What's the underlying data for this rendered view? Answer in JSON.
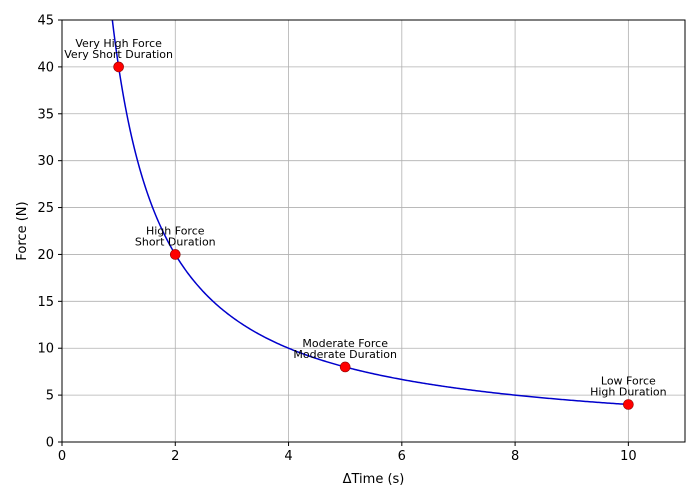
{
  "chart_data": {
    "type": "scatter",
    "xlabel": "ΔTime (s)",
    "ylabel": "Force (N)",
    "xlim": [
      0,
      11
    ],
    "ylim": [
      0,
      45
    ],
    "xticks": [
      "0",
      "2",
      "4",
      "6",
      "8",
      "10"
    ],
    "yticks": [
      "0",
      "5",
      "10",
      "15",
      "20",
      "25",
      "30",
      "35",
      "40",
      "45"
    ],
    "grid": true,
    "curve": {
      "relation": "Force = 40 / ΔTime",
      "color": "#0000cc"
    },
    "points": [
      {
        "x": 1,
        "y": 40,
        "label": [
          "Very High Force",
          "Very Short Duration"
        ]
      },
      {
        "x": 2,
        "y": 20,
        "label": [
          "High Force",
          "Short Duration"
        ]
      },
      {
        "x": 5,
        "y": 8,
        "label": [
          "Moderate Force",
          "Moderate Duration"
        ]
      },
      {
        "x": 10,
        "y": 4,
        "label": [
          "Low Force",
          "High Duration"
        ]
      }
    ],
    "point_color": "#ff0000",
    "point_edge_color": "#8b0000"
  }
}
